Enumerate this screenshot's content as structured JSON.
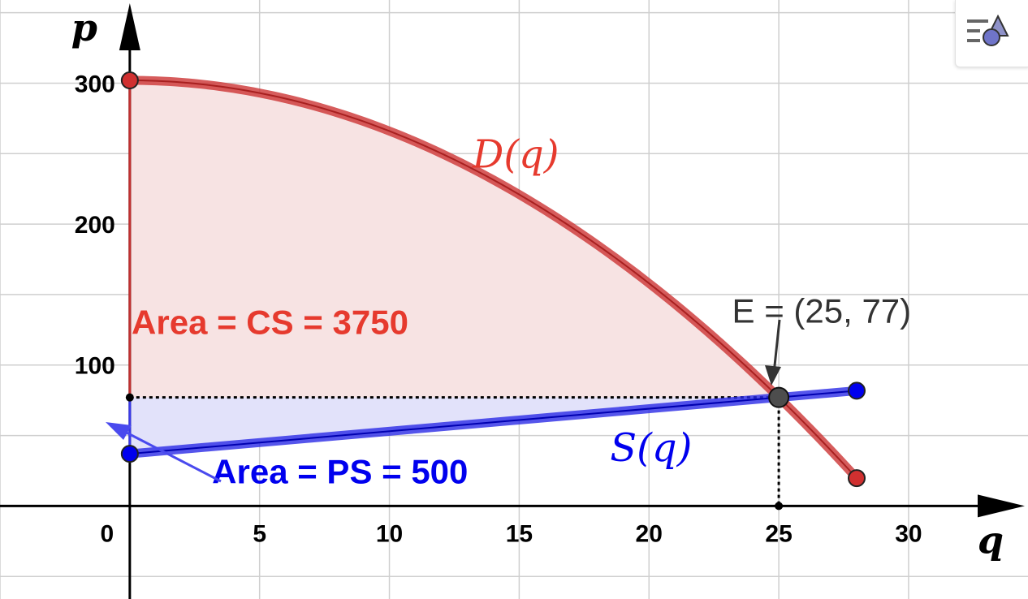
{
  "chart_data": {
    "type": "area",
    "xlabel": "q",
    "ylabel": "p",
    "xlim": [
      -5,
      34.6
    ],
    "ylim": [
      -66,
      359
    ],
    "x_ticks": [
      0,
      5,
      10,
      15,
      20,
      25,
      30
    ],
    "y_ticks": [
      100,
      200,
      300
    ],
    "x_tick_labels": [
      "0",
      "5",
      "10",
      "15",
      "20",
      "25",
      "30"
    ],
    "y_tick_labels": [
      "100",
      "200",
      "300"
    ],
    "grid": true,
    "series": [
      {
        "name": "D(q)",
        "kind": "demand",
        "color": "#cc3333",
        "formula": "p = 302 - 0.36 q^2",
        "x": [
          0,
          2,
          4,
          6,
          8,
          10,
          12,
          14,
          16,
          18,
          20,
          22,
          24,
          25,
          26,
          28
        ],
        "y": [
          302,
          300.56,
          296.24,
          289.04,
          278.96,
          266,
          250.16,
          231.44,
          209.84,
          185.36,
          158,
          127.76,
          94.64,
          77,
          58.64,
          19.76
        ]
      },
      {
        "name": "S(q)",
        "kind": "supply",
        "color": "#0000ff",
        "formula": "p = 37 + 1.6 q",
        "x": [
          0,
          25,
          28
        ],
        "y": [
          37,
          77,
          81.8
        ]
      }
    ],
    "equilibrium": {
      "label": "E = (25, 77)",
      "q": 25,
      "p": 77
    },
    "endpoints": {
      "demand_start": [
        0,
        302
      ],
      "demand_end": [
        28,
        19.76
      ],
      "supply_start": [
        0,
        37
      ],
      "supply_end": [
        28,
        81.8
      ]
    },
    "areas": [
      {
        "label": "Area = CS = 3750",
        "value": 3750,
        "color": "#e63a2e",
        "fill": "#f7e3e3"
      },
      {
        "label": "Area = PS = 500",
        "value": 500,
        "color": "#0000ee",
        "fill": "#e2e2fa"
      }
    ],
    "function_labels": {
      "demand": "D(q)",
      "supply": "S(q)"
    }
  },
  "toolbar": {
    "style_bar_icon": "graphics-style-icon"
  }
}
